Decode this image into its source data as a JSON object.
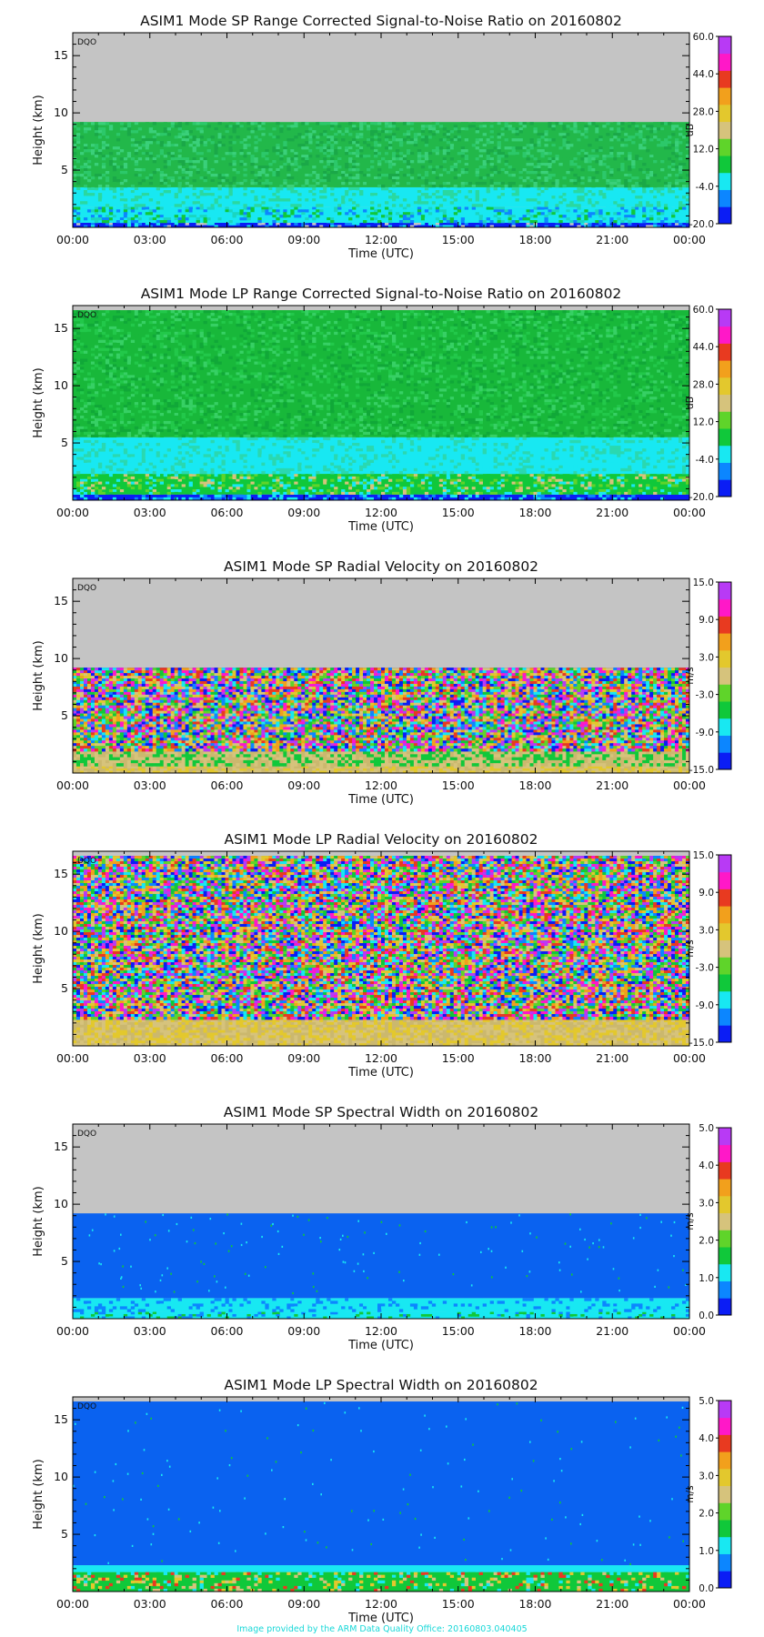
{
  "footer": "Image provided by the ARM Data Quality Office: 20160803.040405",
  "colors": {
    "missing": "#c4c4c4",
    "rainbow": [
      "#0b1df5",
      "#0c86ff",
      "#18e8f2",
      "#10c83a",
      "#5fd42a",
      "#d6c37c",
      "#e3c82d",
      "#f2a01c",
      "#e83a20",
      "#ff18c8",
      "#b83af5"
    ]
  },
  "chart_data": [
    {
      "type": "heatmap",
      "title": "ASIM1 Mode SP Range Corrected Signal-to-Noise Ratio on 20160802",
      "xlabel": "Time (UTC)",
      "ylabel": "Height (km)",
      "x_ticks": [
        "00:00",
        "03:00",
        "06:00",
        "09:00",
        "12:00",
        "15:00",
        "18:00",
        "21:00",
        "00:00"
      ],
      "xlim": [
        0,
        24
      ],
      "y_ticks": [
        "5",
        "10",
        "15"
      ],
      "ylim": [
        0,
        17
      ],
      "colorbar": {
        "label": "dB",
        "ticks": [
          "-20.0",
          "-4.0",
          "12.0",
          "28.0",
          "44.0",
          "60.0"
        ],
        "range": [
          -20,
          60
        ]
      },
      "annotation": "DQO",
      "data_top_km": 9.2,
      "pattern": "snr",
      "layers": [
        {
          "from_km": 0,
          "to_km": 0.4,
          "colors": [
            "#0b1df5",
            "#18e8f2",
            "#c4c4c4",
            "#0c86ff"
          ]
        },
        {
          "from_km": 0.4,
          "to_km": 1.8,
          "colors": [
            "#18e8f2",
            "#10c83a",
            "#0c86ff",
            "#1ad6c0"
          ]
        },
        {
          "from_km": 1.8,
          "to_km": 3.5,
          "colors": [
            "#18e8f2",
            "#2ad8a0"
          ]
        },
        {
          "from_km": 3.5,
          "to_km": 9.2,
          "colors": [
            "#22b84a",
            "#2cc86a",
            "#1aa848",
            "#3ad07a"
          ]
        }
      ]
    },
    {
      "type": "heatmap",
      "title": "ASIM1 Mode LP Range Corrected Signal-to-Noise Ratio on 20160802",
      "xlabel": "Time (UTC)",
      "ylabel": "Height (km)",
      "x_ticks": [
        "00:00",
        "03:00",
        "06:00",
        "09:00",
        "12:00",
        "15:00",
        "18:00",
        "21:00",
        "00:00"
      ],
      "xlim": [
        0,
        24
      ],
      "y_ticks": [
        "5",
        "10",
        "15"
      ],
      "ylim": [
        0,
        17
      ],
      "colorbar": {
        "label": "dB",
        "ticks": [
          "-20.0",
          "-4.0",
          "12.0",
          "28.0",
          "44.0",
          "60.0"
        ],
        "range": [
          -20,
          60
        ]
      },
      "annotation": "DQO",
      "data_top_km": 16.6,
      "pattern": "snr",
      "layers": [
        {
          "from_km": 0,
          "to_km": 0.5,
          "colors": [
            "#0b1df5",
            "#18e8f2",
            "#0c86ff"
          ]
        },
        {
          "from_km": 0.5,
          "to_km": 2.3,
          "colors": [
            "#10c83a",
            "#5fd42a",
            "#18e8f2",
            "#d6c37c"
          ]
        },
        {
          "from_km": 2.3,
          "to_km": 5.5,
          "colors": [
            "#18e8f2",
            "#2ad8b0"
          ]
        },
        {
          "from_km": 5.5,
          "to_km": 16.6,
          "colors": [
            "#18b83a",
            "#22c84a",
            "#10a838",
            "#36d064"
          ]
        }
      ]
    },
    {
      "type": "heatmap",
      "title": "ASIM1 Mode SP Radial Velocity  on 20160802",
      "xlabel": "Time (UTC)",
      "ylabel": "Height (km)",
      "x_ticks": [
        "00:00",
        "03:00",
        "06:00",
        "09:00",
        "12:00",
        "15:00",
        "18:00",
        "21:00",
        "00:00"
      ],
      "xlim": [
        0,
        24
      ],
      "y_ticks": [
        "5",
        "10",
        "15"
      ],
      "ylim": [
        0,
        17
      ],
      "colorbar": {
        "label": "m/s",
        "ticks": [
          "-15.0",
          "-9.0",
          "-3.0",
          "3.0",
          "9.0",
          "15.0"
        ],
        "range": [
          -15,
          15
        ]
      },
      "annotation": "DQO",
      "data_top_km": 9.2,
      "pattern": "noise",
      "layers": [
        {
          "from_km": 0,
          "to_km": 0.6,
          "colors": [
            "#d6c37c",
            "#e3c82d",
            "#cbb86e"
          ]
        },
        {
          "from_km": 0.6,
          "to_km": 1.9,
          "colors": [
            "#d6c37c",
            "#cbb86e",
            "#10c83a"
          ]
        },
        {
          "from_km": 1.9,
          "to_km": 9.2,
          "colors": [
            "#0b1df5",
            "#0c86ff",
            "#18e8f2",
            "#10c83a",
            "#5fd42a",
            "#d6c37c",
            "#e3c82d",
            "#f2a01c",
            "#e83a20",
            "#ff18c8",
            "#b83af5"
          ]
        }
      ]
    },
    {
      "type": "heatmap",
      "title": "ASIM1 Mode LP Radial Velocity  on 20160802",
      "xlabel": "Time (UTC)",
      "ylabel": "Height (km)",
      "x_ticks": [
        "00:00",
        "03:00",
        "06:00",
        "09:00",
        "12:00",
        "15:00",
        "18:00",
        "21:00",
        "00:00"
      ],
      "xlim": [
        0,
        24
      ],
      "y_ticks": [
        "5",
        "10",
        "15"
      ],
      "ylim": [
        0,
        17
      ],
      "colorbar": {
        "label": "m/s",
        "ticks": [
          "-15.0",
          "-9.0",
          "-3.0",
          "3.0",
          "9.0",
          "15.0"
        ],
        "range": [
          -15,
          15
        ]
      },
      "annotation": "DQO",
      "data_top_km": 16.6,
      "pattern": "noise",
      "layers": [
        {
          "from_km": 0,
          "to_km": 2.3,
          "colors": [
            "#d6c37c",
            "#cbb86e",
            "#e3c82d"
          ]
        },
        {
          "from_km": 2.3,
          "to_km": 16.6,
          "colors": [
            "#0b1df5",
            "#0c86ff",
            "#18e8f2",
            "#10c83a",
            "#5fd42a",
            "#d6c37c",
            "#e3c82d",
            "#f2a01c",
            "#e83a20",
            "#ff18c8",
            "#b83af5"
          ]
        }
      ]
    },
    {
      "type": "heatmap",
      "title": "ASIM1 Mode SP Spectral Width  on 20160802",
      "xlabel": "Time (UTC)",
      "ylabel": "Height (km)",
      "x_ticks": [
        "00:00",
        "03:00",
        "06:00",
        "09:00",
        "12:00",
        "15:00",
        "18:00",
        "21:00",
        "00:00"
      ],
      "xlim": [
        0,
        24
      ],
      "y_ticks": [
        "5",
        "10",
        "15"
      ],
      "ylim": [
        0,
        17
      ],
      "colorbar": {
        "label": "m/s",
        "ticks": [
          "0.0",
          "1.0",
          "2.0",
          "3.0",
          "4.0",
          "5.0"
        ],
        "range": [
          0,
          5
        ]
      },
      "annotation": "DQO",
      "data_top_km": 9.2,
      "pattern": "width",
      "layers": [
        {
          "from_km": 0,
          "to_km": 0.6,
          "colors": [
            "#18e8f2",
            "#10c83a",
            "#0c86ff"
          ]
        },
        {
          "from_km": 0.6,
          "to_km": 1.8,
          "colors": [
            "#18e8f2",
            "#0c86ff"
          ]
        },
        {
          "from_km": 1.8,
          "to_km": 9.2,
          "colors": [
            "#0a62f0"
          ]
        }
      ]
    },
    {
      "type": "heatmap",
      "title": "ASIM1 Mode LP Spectral Width  on 20160802",
      "xlabel": "Time (UTC)",
      "ylabel": "Height (km)",
      "x_ticks": [
        "00:00",
        "03:00",
        "06:00",
        "09:00",
        "12:00",
        "15:00",
        "18:00",
        "21:00",
        "00:00"
      ],
      "xlim": [
        0,
        24
      ],
      "y_ticks": [
        "5",
        "10",
        "15"
      ],
      "ylim": [
        0,
        17
      ],
      "colorbar": {
        "label": "m/s",
        "ticks": [
          "0.0",
          "1.0",
          "2.0",
          "3.0",
          "4.0",
          "5.0"
        ],
        "range": [
          0,
          5
        ]
      },
      "annotation": "DQO",
      "data_top_km": 16.6,
      "pattern": "width",
      "layers": [
        {
          "from_km": 0,
          "to_km": 1.7,
          "colors": [
            "#10c83a",
            "#d6c37c",
            "#e3c82d",
            "#e83a20",
            "#18e8f2"
          ]
        },
        {
          "from_km": 1.7,
          "to_km": 2.3,
          "colors": [
            "#18e8f2"
          ]
        },
        {
          "from_km": 2.3,
          "to_km": 16.6,
          "colors": [
            "#0a62f0"
          ]
        }
      ]
    }
  ]
}
